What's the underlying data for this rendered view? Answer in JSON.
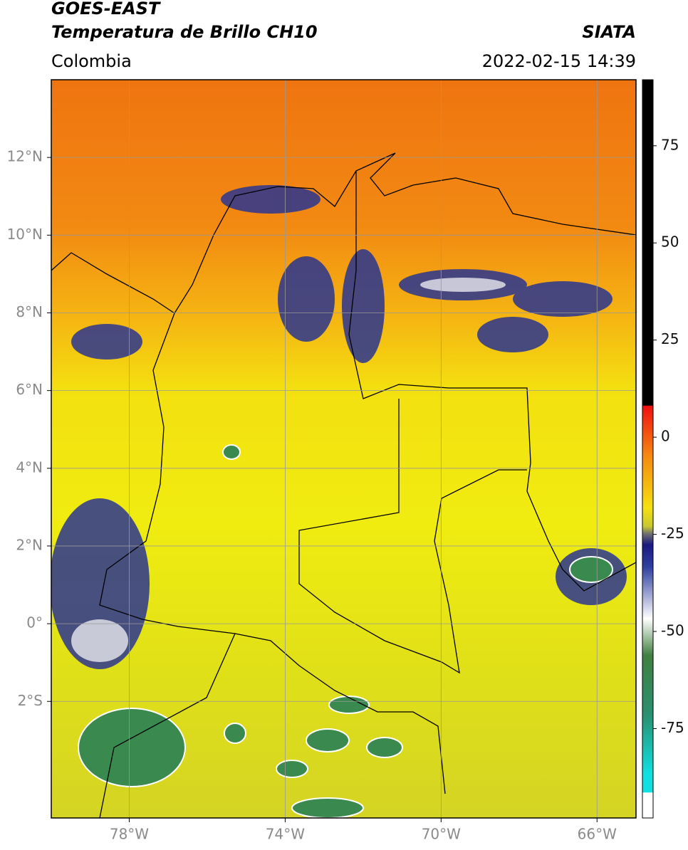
{
  "header": {
    "title": "GOES-EAST",
    "subtitle": "Temperatura de Brillo CH10",
    "region": "Colombia",
    "source": "SIATA",
    "datetime": "2022-02-15 14:39"
  },
  "map": {
    "xlim": [
      -80,
      -65
    ],
    "ylim": [
      -5,
      14
    ],
    "xticks": [
      {
        "value": -78,
        "label": "78°W"
      },
      {
        "value": -74,
        "label": "74°W"
      },
      {
        "value": -70,
        "label": "70°W"
      },
      {
        "value": -66,
        "label": "66°W"
      }
    ],
    "yticks": [
      {
        "value": 12,
        "label": "12°N"
      },
      {
        "value": 10,
        "label": "10°N"
      },
      {
        "value": 8,
        "label": "8°N"
      },
      {
        "value": 6,
        "label": "6°N"
      },
      {
        "value": 4,
        "label": "4°N"
      },
      {
        "value": 2,
        "label": "2°N"
      },
      {
        "value": 0,
        "label": "0°"
      },
      {
        "value": -2,
        "label": "2°S"
      }
    ],
    "grid": true
  },
  "colorbar": {
    "lim": [
      -98,
      92
    ],
    "ticks": [
      75,
      50,
      25,
      0,
      -25,
      -50,
      -75
    ]
  }
}
